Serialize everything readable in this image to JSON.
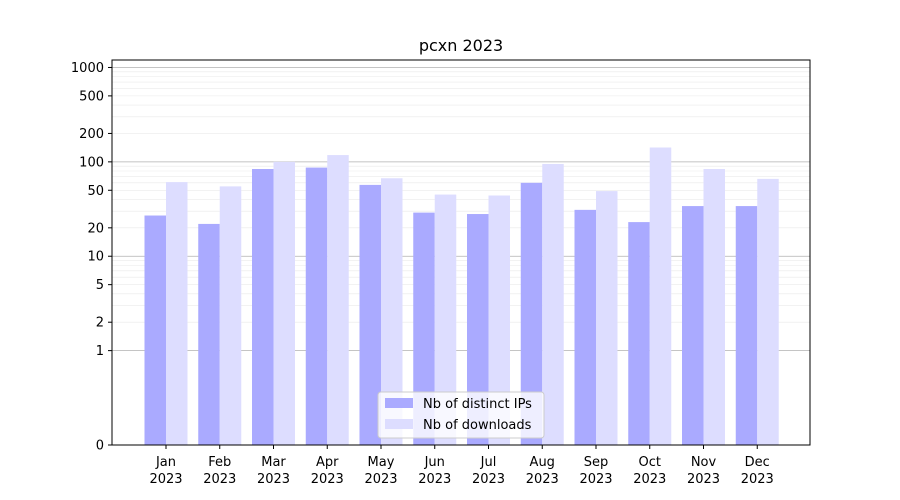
{
  "chart_data": {
    "type": "bar",
    "title": "pcxn 2023",
    "xlabel": "",
    "ylabel": "",
    "y_scale": "symlog",
    "ylim": [
      0,
      1200
    ],
    "y_ticks": [
      0,
      1,
      2,
      5,
      10,
      20,
      50,
      100,
      200,
      500,
      1000
    ],
    "y_tick_labels": [
      "0",
      "1",
      "2",
      "5",
      "10",
      "20",
      "50",
      "100",
      "200",
      "500",
      "1000"
    ],
    "categories": [
      "Jan\n2023",
      "Feb\n2023",
      "Mar\n2023",
      "Apr\n2023",
      "May\n2023",
      "Jun\n2023",
      "Jul\n2023",
      "Aug\n2023",
      "Sep\n2023",
      "Oct\n2023",
      "Nov\n2023",
      "Dec\n2023"
    ],
    "series": [
      {
        "name": "Nb of distinct IPs",
        "color": "#aaaaff",
        "values": [
          27,
          22,
          84,
          87,
          57,
          29,
          28,
          60,
          31,
          23,
          34,
          34
        ]
      },
      {
        "name": "Nb of downloads",
        "color": "#ddddff",
        "values": [
          61,
          55,
          100,
          118,
          67,
          45,
          44,
          95,
          49,
          142,
          84,
          66
        ]
      }
    ],
    "grid": true,
    "legend_position": "bottom-center"
  }
}
